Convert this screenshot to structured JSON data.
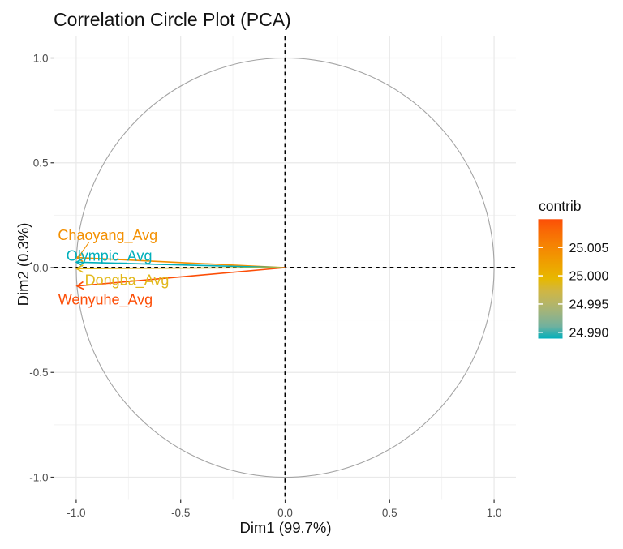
{
  "title": "Correlation Circle Plot (PCA)",
  "chart_data": {
    "type": "scatter",
    "subtype": "pca-correlation-circle",
    "title": "Correlation Circle Plot (PCA)",
    "xlabel": "Dim1 (99.7%)",
    "ylabel": "Dim2 (0.3%)",
    "xlim": [
      -1.1045,
      1.1045
    ],
    "ylim": [
      -1.1045,
      1.1045
    ],
    "xticks": [
      -1.0,
      -0.5,
      0.0,
      0.5,
      1.0
    ],
    "yticks": [
      -1.0,
      -0.5,
      0.0,
      0.5,
      1.0
    ],
    "xtick_labels": [
      "-1.0",
      "-0.5",
      "0.0",
      "0.5",
      "1.0"
    ],
    "ytick_labels": [
      "-1.0",
      "-0.5",
      "0.0",
      "0.5",
      "1.0"
    ],
    "minor_ticks": [
      -0.75,
      -0.25,
      0.25,
      0.75
    ],
    "grid": true,
    "unit_circle": {
      "radius": 1.0,
      "color": "#a3a3a3"
    },
    "zero_lines": {
      "style": "dashed",
      "color": "#000000"
    },
    "vectors": [
      {
        "name": "Chaoyang_Avg",
        "x": -0.998,
        "y": 0.048,
        "contrib": 25.004,
        "color": "#F39001",
        "label_pos": {
          "x": -0.849,
          "y": 0.156
        },
        "leader": {
          "x1": -0.938,
          "y1": 0.122,
          "x2": -0.988,
          "y2": 0.052
        }
      },
      {
        "name": "Olympic_Avg",
        "x": -0.999,
        "y": 0.026,
        "contrib": 24.989,
        "color": "#00AFBB",
        "label_pos": {
          "x": -0.842,
          "y": 0.058
        }
      },
      {
        "name": "Dongba_Avg",
        "x": -0.998,
        "y": -0.005,
        "contrib": 24.999,
        "color": "#E2B81A",
        "label_pos": {
          "x": -0.757,
          "y": -0.058
        }
      },
      {
        "name": "Wenyuhe_Avg",
        "x": -0.996,
        "y": -0.088,
        "contrib": 25.01,
        "color": "#FC4E07",
        "label_pos": {
          "x": -0.86,
          "y": -0.15
        }
      }
    ],
    "legend": {
      "title": "contrib",
      "limits": [
        24.9889,
        25.01
      ],
      "tick_values": [
        25.005,
        25.0,
        24.995,
        24.99
      ],
      "tick_labels": [
        "25.005",
        "25.000",
        "24.995",
        "24.990"
      ],
      "gradient_stops": [
        {
          "offset": 0.0,
          "color": "#00AFBB"
        },
        {
          "offset": 0.1,
          "color": "#6FB19F"
        },
        {
          "offset": 0.2,
          "color": "#98B383"
        },
        {
          "offset": 0.3,
          "color": "#B7B565"
        },
        {
          "offset": 0.4,
          "color": "#D0B643"
        },
        {
          "offset": 0.5,
          "color": "#E7B800"
        },
        {
          "offset": 0.6,
          "color": "#EDA600"
        },
        {
          "offset": 0.7,
          "color": "#F29301"
        },
        {
          "offset": 0.8,
          "color": "#F67F03"
        },
        {
          "offset": 0.9,
          "color": "#F96905"
        },
        {
          "offset": 1.0,
          "color": "#FC4E07"
        }
      ]
    },
    "theme": {
      "grid_major_color": "#e9e9e9",
      "grid_minor_color": "#f2f2f2",
      "tick_mark_color": "#333333",
      "tick_label_color": "#4d4d4d",
      "text_color": "#111111"
    }
  }
}
